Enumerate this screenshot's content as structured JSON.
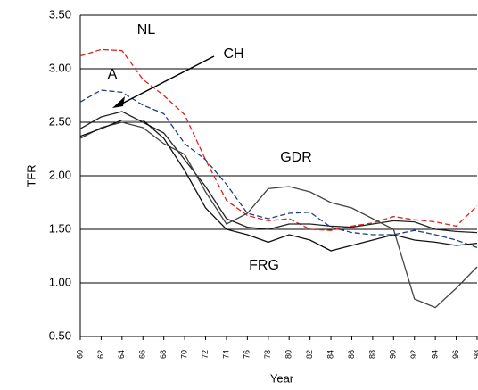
{
  "chart_data": {
    "type": "line",
    "x_label": "Year",
    "y_label": "TFR",
    "x": [
      1960,
      1962,
      1964,
      1966,
      1968,
      1970,
      1972,
      1974,
      1976,
      1978,
      1980,
      1982,
      1984,
      1986,
      1988,
      1990,
      1992,
      1994,
      1996,
      1998
    ],
    "series": [
      {
        "name": "NL",
        "color": "#e02020",
        "dash": true,
        "values": [
          3.12,
          3.18,
          3.17,
          2.9,
          2.75,
          2.57,
          2.15,
          1.77,
          1.63,
          1.58,
          1.6,
          1.5,
          1.49,
          1.53,
          1.56,
          1.62,
          1.59,
          1.57,
          1.53,
          1.72
        ]
      },
      {
        "name": "A",
        "color": "#1f3f7f",
        "dash": true,
        "values": [
          2.69,
          2.8,
          2.78,
          2.66,
          2.58,
          2.3,
          2.15,
          1.92,
          1.65,
          1.6,
          1.65,
          1.66,
          1.52,
          1.47,
          1.45,
          1.45,
          1.49,
          1.45,
          1.4,
          1.33
        ]
      },
      {
        "name": "CH",
        "color": "#222222",
        "dash": false,
        "values": [
          2.44,
          2.55,
          2.6,
          2.5,
          2.4,
          2.15,
          1.9,
          1.6,
          1.52,
          1.5,
          1.55,
          1.55,
          1.53,
          1.52,
          1.55,
          1.58,
          1.57,
          1.5,
          1.48,
          1.47
        ]
      },
      {
        "name": "GDR",
        "color": "#444444",
        "dash": false,
        "values": [
          2.35,
          2.45,
          2.5,
          2.45,
          2.3,
          2.2,
          1.85,
          1.55,
          1.65,
          1.88,
          1.9,
          1.85,
          1.75,
          1.7,
          1.6,
          1.5,
          0.85,
          0.77,
          0.95,
          1.15
        ]
      },
      {
        "name": "FRG",
        "color": "#111111",
        "dash": false,
        "values": [
          2.37,
          2.44,
          2.52,
          2.52,
          2.35,
          2.05,
          1.7,
          1.5,
          1.45,
          1.38,
          1.45,
          1.4,
          1.3,
          1.35,
          1.4,
          1.45,
          1.4,
          1.38,
          1.35,
          1.37
        ]
      }
    ],
    "xlim": [
      1960,
      1998
    ],
    "xticks": [
      {
        "value": 1960,
        "label": "60"
      },
      {
        "value": 1962,
        "label": "62"
      },
      {
        "value": 1964,
        "label": "64"
      },
      {
        "value": 1966,
        "label": "66"
      },
      {
        "value": 1968,
        "label": "68"
      },
      {
        "value": 1970,
        "label": "70"
      },
      {
        "value": 1972,
        "label": "72"
      },
      {
        "value": 1974,
        "label": "74"
      },
      {
        "value": 1976,
        "label": "76"
      },
      {
        "value": 1978,
        "label": "78"
      },
      {
        "value": 1980,
        "label": "80"
      },
      {
        "value": 1982,
        "label": "82"
      },
      {
        "value": 1984,
        "label": "84"
      },
      {
        "value": 1986,
        "label": "86"
      },
      {
        "value": 1988,
        "label": "88"
      },
      {
        "value": 1990,
        "label": "90"
      },
      {
        "value": 1992,
        "label": "92"
      },
      {
        "value": 1994,
        "label": "94"
      },
      {
        "value": 1996,
        "label": "96"
      },
      {
        "value": 1998,
        "label": "98"
      }
    ],
    "ylim": [
      0.5,
      3.5
    ],
    "yticks": [
      {
        "value": 0.5,
        "label": "0.50"
      },
      {
        "value": 1,
        "label": "1.00"
      },
      {
        "value": 1.5,
        "label": "1.50"
      },
      {
        "value": 2,
        "label": "2.00"
      },
      {
        "value": 2.5,
        "label": "2.50"
      },
      {
        "value": 3,
        "label": "3.00"
      },
      {
        "value": 3.5,
        "label": "3.50"
      }
    ],
    "grid": true
  }
}
